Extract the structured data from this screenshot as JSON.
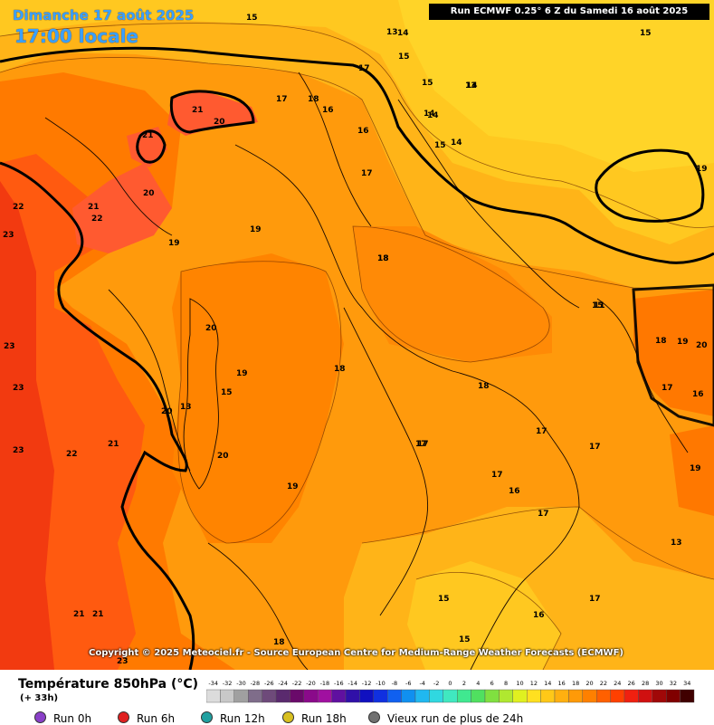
{
  "header": {
    "date": "Dimanche 17 août 2025",
    "time": "17:00 locale",
    "run_info": "Run ECMWF 0.25° 6 Z du Samedi 16 août 2025"
  },
  "copyright": "Copyright © 2025 Meteociel.fr - Source European Centre for Medium-Range Weather Forecasts (ECMWF)",
  "legend": {
    "title": "Température 850hPa (°C)",
    "forecast_hour": "(+ 33h)",
    "scale_values": [
      "-34",
      "-32",
      "-30",
      "-28",
      "-26",
      "-24",
      "-22",
      "-20",
      "-18",
      "-16",
      "-14",
      "-12",
      "-10",
      "-8",
      "-6",
      "-4",
      "-2",
      "0",
      "2",
      "4",
      "6",
      "8",
      "10",
      "12",
      "14",
      "16",
      "18",
      "20",
      "22",
      "24",
      "26",
      "28",
      "30",
      "32",
      "34"
    ],
    "scale_colors": [
      "#dcdcdc",
      "#c8c8c8",
      "#a0a0a0",
      "#7f6d8a",
      "#6e4a7a",
      "#5a2a6e",
      "#6a0a6a",
      "#8a0a8a",
      "#a010a0",
      "#6010a0",
      "#3010a8",
      "#1010c0",
      "#1030e0",
      "#1060f0",
      "#1090f0",
      "#20b8f0",
      "#30d8e0",
      "#40e8c0",
      "#40e890",
      "#50e060",
      "#80e040",
      "#b0e830",
      "#e0f020",
      "#ffe020",
      "#ffc818",
      "#ffb010",
      "#ff9a08",
      "#ff8000",
      "#ff6000",
      "#ff4000",
      "#f02010",
      "#d01010",
      "#a00808",
      "#800000",
      "#400000"
    ]
  },
  "run_selector": [
    {
      "label": "Run 0h",
      "color": "#8a40c8"
    },
    {
      "label": "Run 6h",
      "color": "#e02020"
    },
    {
      "label": "Run 12h",
      "color": "#20a0a0"
    },
    {
      "label": "Run 18h",
      "color": "#d8c020"
    },
    {
      "label": "Vieux run de plus de 24h",
      "color": "#707070"
    }
  ],
  "map": {
    "isotherm_labels": [
      "21",
      "21",
      "22",
      "20",
      "21",
      "22",
      "23",
      "23",
      "23",
      "23",
      "22",
      "21",
      "20",
      "21",
      "20",
      "20",
      "19",
      "19",
      "19",
      "15",
      "20",
      "13",
      "18",
      "19",
      "18",
      "17",
      "17",
      "16",
      "16",
      "17",
      "14",
      "13",
      "15",
      "15",
      "14",
      "13",
      "14",
      "14",
      "15",
      "15",
      "19",
      "18",
      "17",
      "17",
      "17",
      "16",
      "17",
      "17",
      "16",
      "15",
      "15",
      "17",
      "18",
      "17",
      "13",
      "15",
      "11",
      "18",
      "19",
      "20",
      "17",
      "16",
      "19",
      "15",
      "23",
      "21",
      "18",
      "18",
      "14"
    ]
  }
}
